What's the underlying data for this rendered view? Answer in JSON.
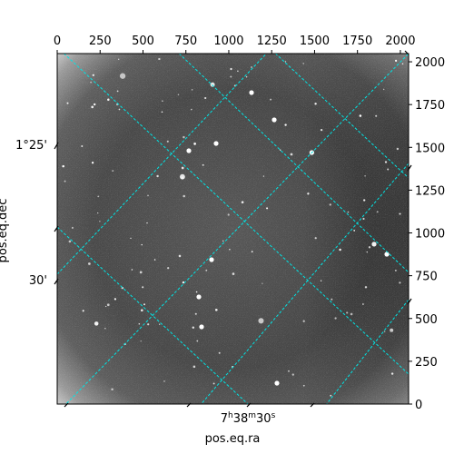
{
  "chart_data": {
    "type": "image",
    "pixel_axes": {
      "x": {
        "ticks": [
          0,
          250,
          500,
          750,
          1000,
          1250,
          1500,
          1750,
          2000
        ],
        "labels": [
          "0",
          "250",
          "500",
          "750",
          "1000",
          "1250",
          "1500",
          "1750",
          "2000"
        ],
        "range": [
          0,
          2048
        ]
      },
      "y": {
        "ticks": [
          0,
          250,
          500,
          750,
          1000,
          1250,
          1500,
          1750,
          2000
        ],
        "labels": [
          "0",
          "250",
          "500",
          "750",
          "1000",
          "1250",
          "1500",
          "1750",
          "2000"
        ],
        "range": [
          0,
          2048
        ]
      }
    },
    "world_axes": {
      "dec_ticks": [
        "1°25'",
        "30'"
      ],
      "ra_tick": {
        "h": "7",
        "h_unit": "h",
        "m": "38",
        "m_unit": "m",
        "s": "30",
        "s_unit": "s"
      }
    },
    "xlabel": "pos.eq.ra",
    "ylabel": "pos.eq.dec",
    "grid": true,
    "grid_color": "#00e5e5",
    "colormap": "gray"
  }
}
